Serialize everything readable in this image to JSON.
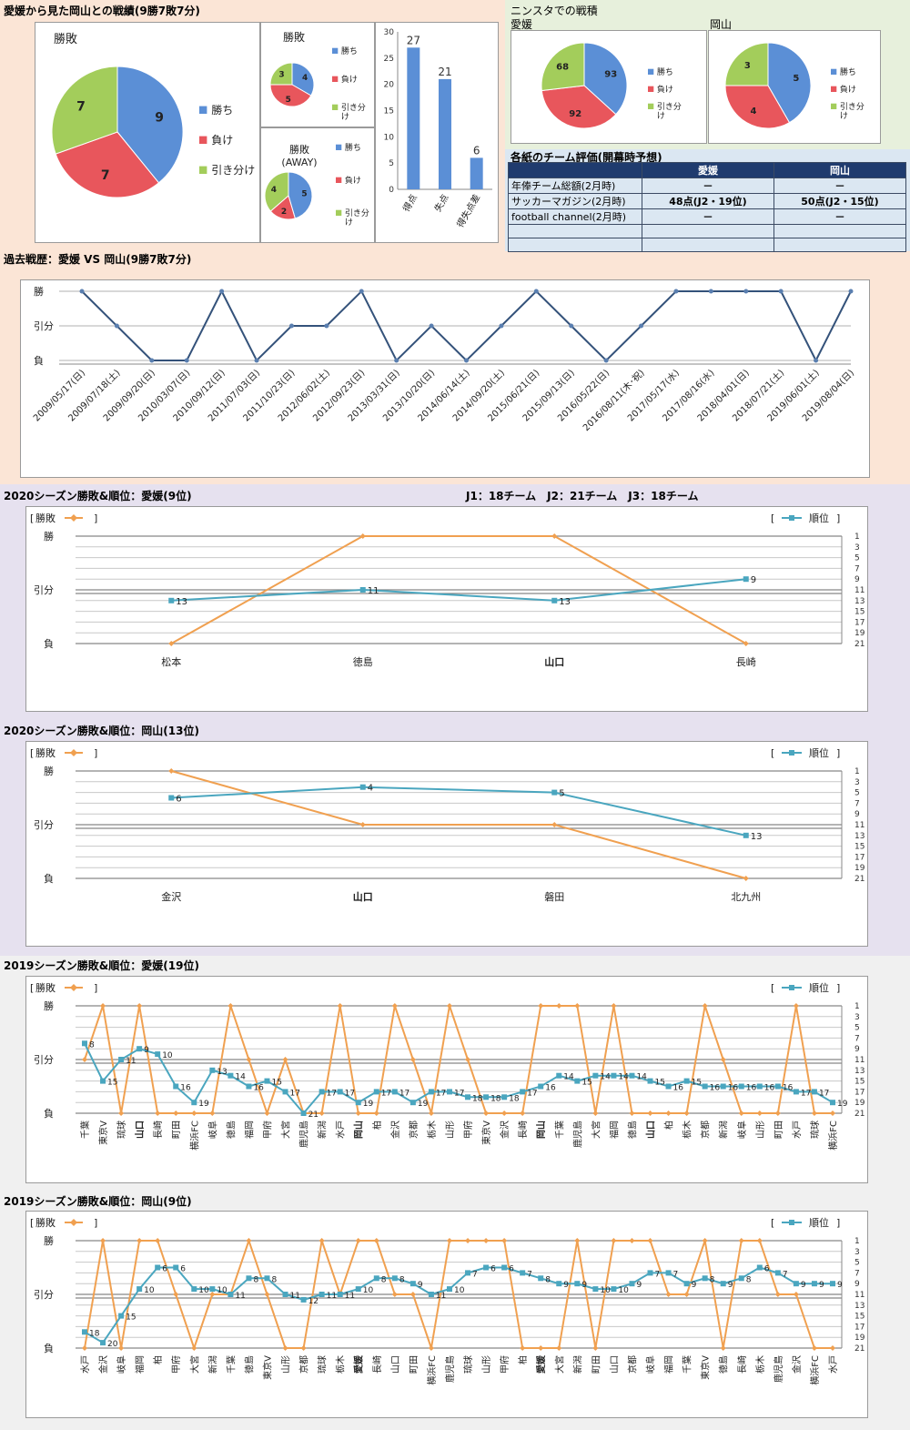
{
  "titles": {
    "h2h": "愛媛から見た岡山との戦績(9勝7敗7分)",
    "ninsta": "ニンスタでの戦積",
    "ninsta_ehime": "愛媛",
    "ninsta_okayama": "岡山",
    "eval": "各紙のチーム評価(開幕時予想)",
    "history": "過去戦歴：愛媛 VS 岡山(9勝7敗7分)",
    "s2020_ehime": "2020シーズン勝敗&順位：愛媛(9位)",
    "league_info": "J1：18チーム　J2：21チーム　J3：18チーム",
    "s2020_okayama": "2020シーズン勝敗&順位：岡山(13位)",
    "s2019_ehime": "2019シーズン勝敗&順位：愛媛(19位)",
    "s2019_okayama": "2019シーズン勝敗&順位：岡山(9位)"
  },
  "legend": {
    "win": "勝ち",
    "loss": "負け",
    "draw": "引き分け",
    "result_label": "勝敗",
    "rank_label": "順位",
    "bracket_open": "[",
    "bracket_close": "]"
  },
  "colors": {
    "win": "#5b8fd6",
    "loss": "#e8565c",
    "draw": "#a3cd5b",
    "result_line": "#f0a050",
    "rank_line": "#4aa6bf",
    "history_line": "#34527a",
    "bar": "#5b8fd6"
  },
  "eval_table": {
    "header": [
      "",
      "愛媛",
      "岡山"
    ],
    "rows": [
      [
        "年俸チーム総額(2月時)",
        "－",
        "－"
      ],
      [
        "サッカーマガジン(2月時)",
        "48点(J2・19位)",
        "50点(J2・15位)"
      ],
      [
        "football channel(2月時)",
        "－",
        "－"
      ],
      [
        "",
        "",
        ""
      ],
      [
        "",
        "",
        ""
      ]
    ]
  },
  "chart_data": [
    {
      "type": "pie",
      "title": "勝敗",
      "labels": [
        "勝ち",
        "負け",
        "引き分け"
      ],
      "values": [
        9,
        7,
        7
      ]
    },
    {
      "type": "pie",
      "title": "勝敗",
      "labels": [
        "勝ち",
        "負け",
        "引き分け"
      ],
      "values": [
        4,
        5,
        3
      ]
    },
    {
      "type": "pie",
      "title": "勝敗\n(AWAY)",
      "labels": [
        "勝ち",
        "負け",
        "引き分け"
      ],
      "values": [
        5,
        2,
        4
      ]
    },
    {
      "type": "bar",
      "categories": [
        "得点",
        "失点",
        "得失点差"
      ],
      "values": [
        27,
        21,
        6
      ],
      "ylim": [
        0,
        30
      ],
      "yticks": [
        0,
        5,
        10,
        15,
        20,
        25,
        30
      ]
    },
    {
      "type": "pie",
      "title": "愛媛",
      "labels": [
        "勝ち",
        "負け",
        "引き分け"
      ],
      "values": [
        93,
        92,
        68
      ]
    },
    {
      "type": "pie",
      "title": "岡山",
      "labels": [
        "勝ち",
        "負け",
        "引き分け"
      ],
      "values": [
        5,
        4,
        3
      ]
    },
    {
      "type": "line",
      "title": "過去戦歴：愛媛 VS 岡山(9勝7敗7分)",
      "ylabels": [
        "勝",
        "引分",
        "負"
      ],
      "x": [
        "2009/05/17(日)",
        "2009/07/18(土)",
        "2009/09/20(日)",
        "2010/03/07(日)",
        "2010/09/12(日)",
        "2011/07/03(日)",
        "2011/10/23(日)",
        "2012/06/02(土)",
        "2012/09/23(日)",
        "2013/03/31(日)",
        "2013/10/20(日)",
        "2014/06/14(土)",
        "2014/09/20(土)",
        "2015/06/21(日)",
        "2015/09/13(日)",
        "2016/05/22(日)",
        "2016/08/11(木･祝)",
        "2017/05/17(水)",
        "2017/08/16(水)",
        "2018/04/01(日)",
        "2018/07/21(土)",
        "2019/06/01(土)",
        "2019/08/04(日)"
      ],
      "results": [
        1,
        0,
        -1,
        -1,
        1,
        -1,
        0,
        0,
        1,
        -1,
        0,
        -1,
        0,
        1,
        0,
        -1,
        0,
        1,
        1,
        1,
        1,
        -1,
        1
      ]
    },
    {
      "type": "line",
      "title": "2020シーズン勝敗&順位：愛媛(9位)",
      "ylabels": [
        "勝",
        "引分",
        "負"
      ],
      "rank_ticks": [
        1,
        3,
        5,
        7,
        9,
        11,
        13,
        15,
        17,
        19,
        21
      ],
      "x": [
        "松本",
        "徳島",
        "山口",
        "長崎"
      ],
      "bold_x": [
        "山口"
      ],
      "series": [
        {
          "name": "勝敗",
          "values": [
            -1,
            1,
            1,
            -1
          ]
        },
        {
          "name": "順位",
          "values": [
            13,
            11,
            13,
            9
          ]
        }
      ]
    },
    {
      "type": "line",
      "title": "2020シーズン勝敗&順位：岡山(13位)",
      "ylabels": [
        "勝",
        "引分",
        "負"
      ],
      "rank_ticks": [
        1,
        3,
        5,
        7,
        9,
        11,
        13,
        15,
        17,
        19,
        21
      ],
      "x": [
        "金沢",
        "山口",
        "磐田",
        "北九州"
      ],
      "bold_x": [
        "山口"
      ],
      "series": [
        {
          "name": "勝敗",
          "values": [
            1,
            0,
            0,
            -1
          ]
        },
        {
          "name": "順位",
          "values": [
            6,
            4,
            5,
            13
          ]
        }
      ]
    },
    {
      "type": "line",
      "title": "2019シーズン勝敗&順位：愛媛(19位)",
      "ylabels": [
        "勝",
        "引分",
        "負"
      ],
      "rank_ticks": [
        1,
        3,
        5,
        7,
        9,
        11,
        13,
        15,
        17,
        19,
        21
      ],
      "x": [
        "千葉",
        "東京V",
        "琉球",
        "山口",
        "長崎",
        "町田",
        "横浜FC",
        "岐阜",
        "徳島",
        "福岡",
        "甲府",
        "大宮",
        "鹿児島",
        "新潟",
        "水戸",
        "岡山",
        "柏",
        "金沢",
        "京都",
        "栃木",
        "山形",
        "甲府",
        "東京V",
        "金沢",
        "長崎",
        "岡山",
        "千葉",
        "鹿児島",
        "大宮",
        "福岡",
        "徳島",
        "山口",
        "柏",
        "栃木",
        "京都",
        "新潟",
        "岐阜",
        "山形",
        "町田",
        "水戸",
        "琉球",
        "横浜FC"
      ],
      "bold_x": [
        "山口",
        "岡山"
      ],
      "series": [
        {
          "name": "勝敗",
          "values": [
            0,
            1,
            -1,
            1,
            -1,
            -1,
            -1,
            -1,
            1,
            0,
            -1,
            0,
            -1,
            -1,
            1,
            -1,
            -1,
            1,
            0,
            -1,
            1,
            0,
            -1,
            -1,
            -1,
            1,
            1,
            1,
            -1,
            1,
            -1,
            -1,
            -1,
            -1,
            1,
            0,
            -1,
            -1,
            -1,
            1,
            -1,
            -1
          ]
        },
        {
          "name": "順位",
          "values": [
            8,
            15,
            11,
            9,
            10,
            16,
            19,
            13,
            14,
            16,
            15,
            17,
            21,
            17,
            17,
            19,
            17,
            17,
            19,
            17,
            17,
            18,
            18,
            18,
            17,
            16,
            14,
            15,
            14,
            14,
            14,
            15,
            16,
            15,
            16,
            16,
            16,
            16,
            16,
            17,
            17,
            19
          ]
        }
      ]
    },
    {
      "type": "line",
      "title": "2019シーズン勝敗&順位：岡山(9位)",
      "ylabels": [
        "勝",
        "引分",
        "負"
      ],
      "rank_ticks": [
        1,
        3,
        5,
        7,
        9,
        11,
        13,
        15,
        17,
        19,
        21
      ],
      "x": [
        "水戸",
        "金沢",
        "岐阜",
        "福岡",
        "柏",
        "甲府",
        "大宮",
        "新潟",
        "千葉",
        "徳島",
        "東京V",
        "山形",
        "京都",
        "琉球",
        "栃木",
        "愛媛",
        "長崎",
        "山口",
        "町田",
        "横浜FC",
        "鹿児島",
        "琉球",
        "山形",
        "甲府",
        "柏",
        "愛媛",
        "大宮",
        "新潟",
        "町田",
        "山口",
        "京都",
        "岐阜",
        "福岡",
        "千葉",
        "東京V",
        "徳島",
        "長崎",
        "栃木",
        "鹿児島",
        "金沢",
        "横浜FC",
        "水戸"
      ],
      "bold_x": [
        "愛媛"
      ],
      "series": [
        {
          "name": "勝敗",
          "values": [
            -1,
            1,
            -1,
            1,
            1,
            0,
            -1,
            0,
            0,
            1,
            0,
            -1,
            -1,
            1,
            0,
            1,
            1,
            0,
            0,
            -1,
            1,
            1,
            1,
            1,
            -1,
            -1,
            -1,
            1,
            -1,
            1,
            1,
            1,
            0,
            0,
            1,
            -1,
            1,
            1,
            0,
            0,
            -1,
            -1
          ]
        },
        {
          "name": "順位",
          "values": [
            18,
            20,
            15,
            10,
            6,
            6,
            10,
            10,
            11,
            8,
            8,
            11,
            12,
            11,
            11,
            10,
            8,
            8,
            9,
            11,
            10,
            7,
            6,
            6,
            7,
            8,
            9,
            9,
            10,
            10,
            9,
            7,
            7,
            9,
            8,
            9,
            8,
            6,
            7,
            9,
            9,
            9
          ]
        }
      ]
    }
  ]
}
